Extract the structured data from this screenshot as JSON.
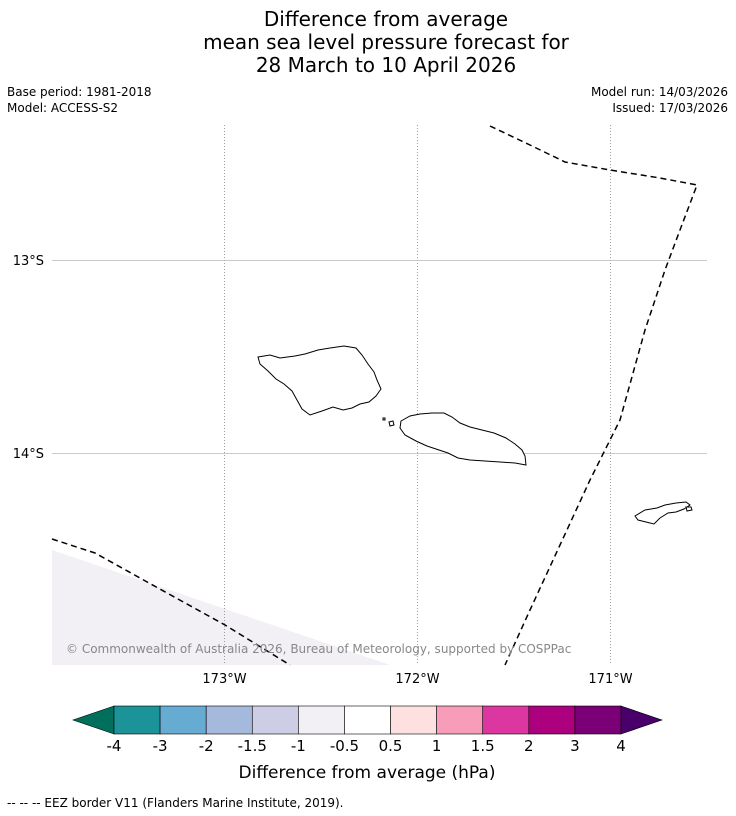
{
  "title": {
    "line1": "Difference from average",
    "line2": "mean sea level pressure forecast for",
    "line3": "28 March to 10 April 2026"
  },
  "meta": {
    "base_period": "Base period: 1981-2018",
    "model": "Model: ACCESS-S2",
    "model_run": "Model run: 14/03/2026",
    "issued": "Issued: 17/03/2026"
  },
  "map": {
    "lat_labels": [
      "13°S",
      "14°S"
    ],
    "lon_labels": [
      "173°W",
      "172°W",
      "171°W"
    ],
    "copyright": "© Commonwealth of Australia 2026, Bureau of Meteorology, supported by COSPPac",
    "anomaly_fill_color": "#f2eff5",
    "anomaly_bin": "-1 to -0.5"
  },
  "legend": {
    "title": "Difference from average (hPa)",
    "tick_labels": [
      "-4",
      "-3",
      "-2",
      "-1.5",
      "-1",
      "-0.5",
      "0.5",
      "1",
      "1.5",
      "2",
      "3",
      "4"
    ],
    "colors": {
      "below_min": "#00705d",
      "bins": [
        "#1b9398",
        "#66abd2",
        "#a5b9dc",
        "#cdcde6",
        "#f2eff5",
        "#ffffff",
        "#fee0e0",
        "#f79db9",
        "#dc37a0",
        "#ad007e",
        "#7b0078"
      ],
      "above_max": "#4a006b"
    }
  },
  "footer": {
    "eez_legend": "--  --  -- EEZ border V11 (Flanders Marine Institute, 2019)."
  }
}
